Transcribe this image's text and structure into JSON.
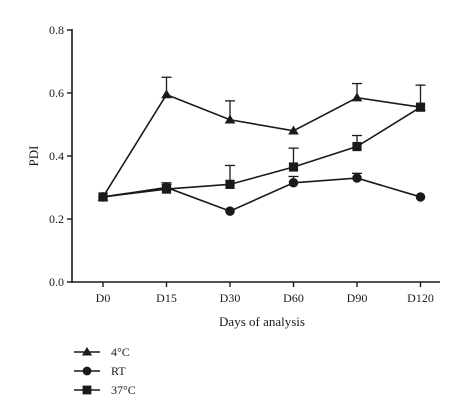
{
  "chart_data": {
    "type": "line",
    "categories": [
      "D0",
      "D15",
      "D30",
      "D60",
      "D90",
      "D120"
    ],
    "xlabel": "Days of analysis",
    "ylabel": "PDI",
    "ylim": [
      0.0,
      0.8
    ],
    "yticks": [
      "0.0",
      "0.2",
      "0.4",
      "0.6",
      "0.8"
    ],
    "grid": false,
    "legend_position": "bottom-left",
    "series": [
      {
        "name": "4°C",
        "marker": "triangle",
        "values": [
          0.27,
          0.595,
          0.515,
          0.48,
          0.585,
          0.555
        ],
        "error": [
          0.0,
          0.055,
          0.06,
          0.0,
          0.045,
          0.0
        ]
      },
      {
        "name": "RT",
        "marker": "circle",
        "values": [
          0.27,
          0.3,
          0.225,
          0.315,
          0.33,
          0.27
        ],
        "error": [
          0.0,
          0.015,
          0.0,
          0.02,
          0.015,
          0.0
        ]
      },
      {
        "name": "37°C",
        "marker": "square",
        "values": [
          0.27,
          0.295,
          0.31,
          0.365,
          0.43,
          0.555
        ],
        "error": [
          0.0,
          0.015,
          0.06,
          0.06,
          0.035,
          0.07
        ]
      }
    ]
  }
}
